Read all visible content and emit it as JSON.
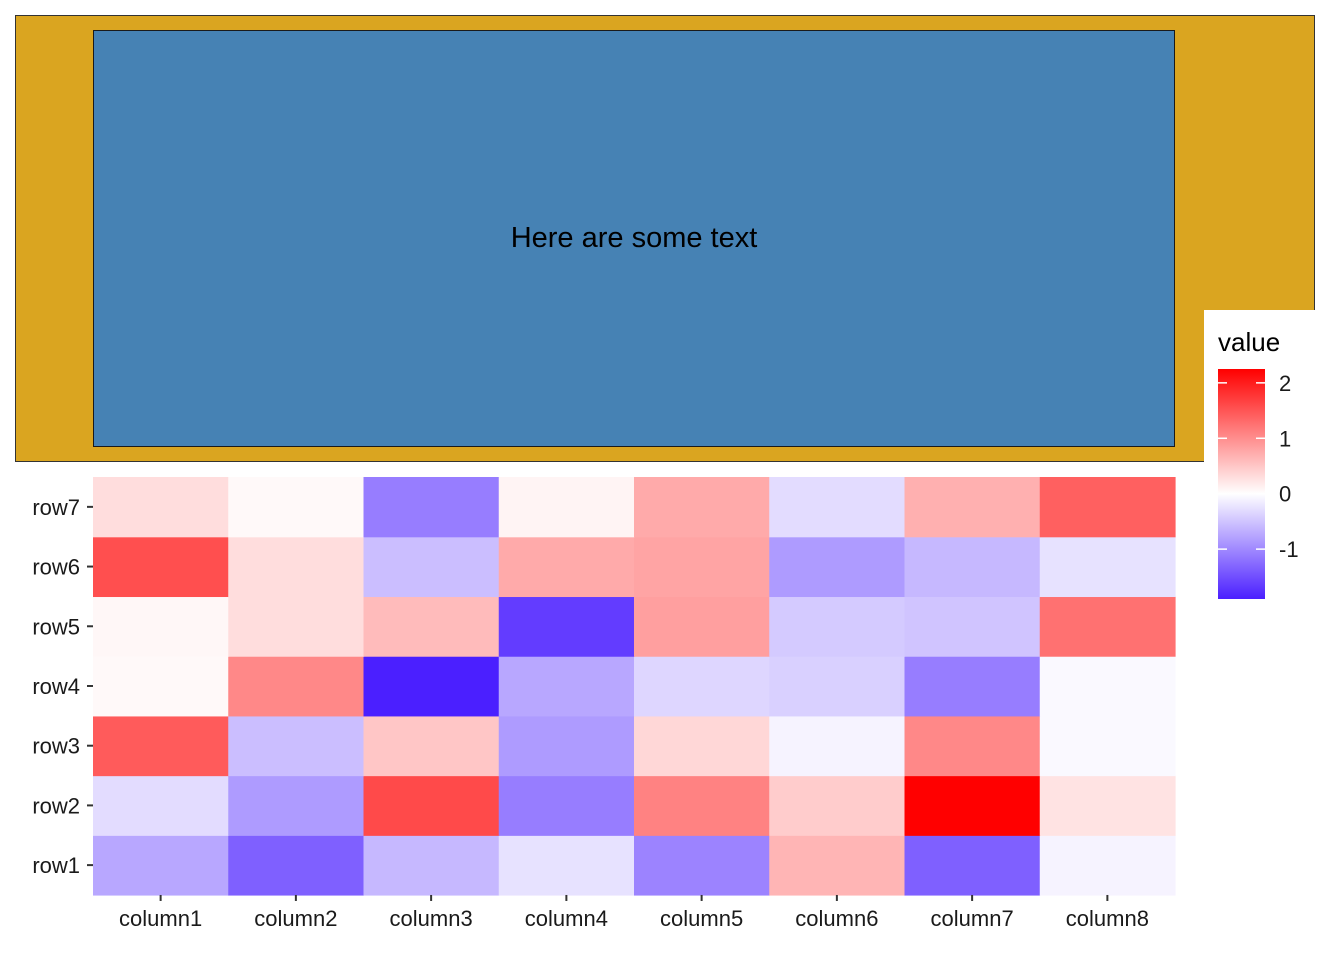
{
  "annotation": {
    "text": "Here are some text"
  },
  "colors": {
    "panel_fill": "#DAA520",
    "text_box_fill": "#4682B4",
    "low": "#4B1FFF",
    "mid": "#FFFFFF",
    "high": "#FF0000"
  },
  "chart_data": {
    "type": "heatmap",
    "x": [
      "column1",
      "column2",
      "column3",
      "column4",
      "column5",
      "column6",
      "column7",
      "column8"
    ],
    "y": [
      "row1",
      "row2",
      "row3",
      "row4",
      "row5",
      "row6",
      "row7"
    ],
    "values": [
      [
        -0.75,
        -1.35,
        -0.6,
        -0.25,
        -1.05,
        0.65,
        -1.35,
        -0.1
      ],
      [
        -0.3,
        -0.85,
        1.6,
        -1.1,
        1.1,
        0.45,
        2.25,
        0.25
      ],
      [
        1.45,
        -0.55,
        0.5,
        -0.85,
        0.35,
        -0.1,
        1.05,
        -0.05
      ],
      [
        0.05,
        1.05,
        -1.9,
        -0.75,
        -0.35,
        -0.4,
        -1.1,
        -0.05
      ],
      [
        0.07,
        0.3,
        0.6,
        -1.65,
        0.85,
        -0.45,
        -0.5,
        1.25
      ],
      [
        1.55,
        0.3,
        -0.55,
        0.75,
        0.8,
        -0.85,
        -0.6,
        -0.25
      ],
      [
        0.3,
        0.05,
        -1.1,
        0.1,
        0.75,
        -0.3,
        0.7,
        1.4
      ]
    ],
    "legend": {
      "title": "value",
      "breaks": [
        2,
        1,
        0,
        -1
      ],
      "range": [
        -1.9,
        2.25
      ]
    }
  }
}
